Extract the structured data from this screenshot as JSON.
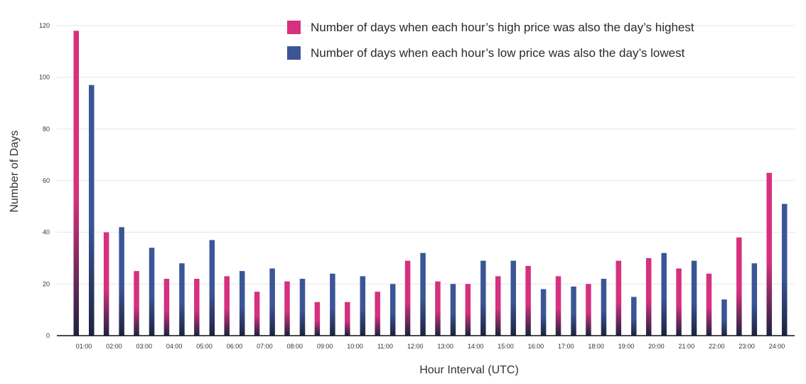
{
  "chart_data": {
    "type": "bar",
    "xlabel": "Hour Interval (UTC)",
    "ylabel": "Number of Days",
    "ylim": [
      0,
      120
    ],
    "yticks": [
      0,
      20,
      40,
      60,
      80,
      100,
      120
    ],
    "grid": true,
    "legend_position": "top-right",
    "categories": [
      "01:00",
      "02:00",
      "03:00",
      "04:00",
      "05:00",
      "06:00",
      "07:00",
      "08:00",
      "09:00",
      "10:00",
      "11:00",
      "12:00",
      "13:00",
      "14:00",
      "15:00",
      "16:00",
      "17:00",
      "18:00",
      "19:00",
      "20:00",
      "21:00",
      "22:00",
      "23:00",
      "24:00"
    ],
    "series": [
      {
        "name": "Number of days when each hour’s high price was also the day’s highest",
        "color": "#d6307f",
        "values": [
          118,
          40,
          25,
          22,
          22,
          23,
          17,
          21,
          13,
          13,
          17,
          29,
          21,
          20,
          23,
          27,
          23,
          20,
          29,
          30,
          26,
          24,
          38,
          63
        ]
      },
      {
        "name": "Number of days when each hour’s low price was also the day’s lowest",
        "color": "#3b5596",
        "values": [
          97,
          42,
          34,
          28,
          37,
          25,
          26,
          22,
          24,
          23,
          20,
          32,
          20,
          29,
          29,
          18,
          19,
          22,
          15,
          32,
          29,
          14,
          28,
          51
        ]
      }
    ]
  }
}
